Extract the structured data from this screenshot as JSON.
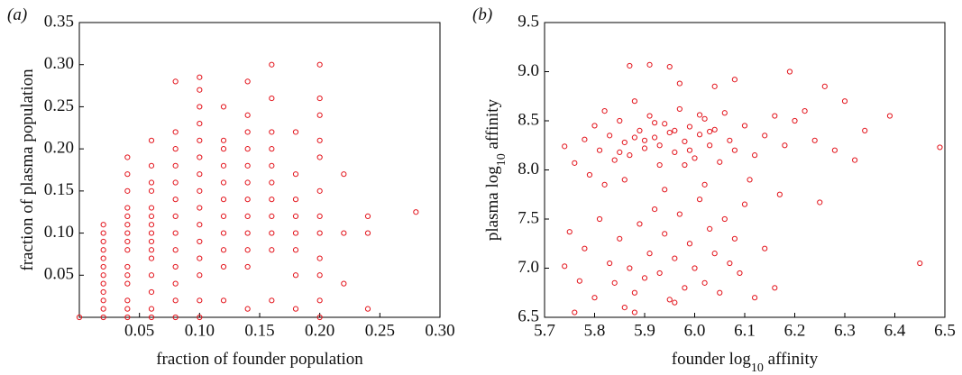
{
  "chart_data": [
    {
      "type": "scatter",
      "panel_label": "(a)",
      "xlabel": "fraction of founder population",
      "ylabel": [
        "fraction of plasma population"
      ],
      "color": "#e3141c",
      "xlim": [
        0,
        0.3
      ],
      "ylim": [
        0,
        0.35
      ],
      "xticks": [
        0.05,
        {
          "value": 0.1,
          "label": "0.10"
        },
        0.15,
        {
          "value": 0.2,
          "label": "0.20"
        },
        0.25,
        {
          "value": 0.3,
          "label": "0.30"
        }
      ],
      "yticks": [
        0.05,
        {
          "value": 0.1,
          "label": "0.10"
        },
        0.15,
        {
          "value": 0.2,
          "label": "0.20"
        },
        0.25,
        {
          "value": 0.3,
          "label": "0.30"
        },
        0.35
      ],
      "x": [
        0,
        0.02,
        0.02,
        0.02,
        0.02,
        0.02,
        0.02,
        0.02,
        0.02,
        0.02,
        0.02,
        0.02,
        0.02,
        0.04,
        0.04,
        0.04,
        0.04,
        0.04,
        0.04,
        0.04,
        0.04,
        0.04,
        0.04,
        0.04,
        0.04,
        0.04,
        0.04,
        0.04,
        0.06,
        0.06,
        0.06,
        0.06,
        0.06,
        0.06,
        0.06,
        0.06,
        0.06,
        0.06,
        0.06,
        0.06,
        0.06,
        0.06,
        0.06,
        0.08,
        0.08,
        0.08,
        0.08,
        0.08,
        0.08,
        0.08,
        0.08,
        0.08,
        0.08,
        0.08,
        0.08,
        0.08,
        0.1,
        0.1,
        0.1,
        0.1,
        0.1,
        0.1,
        0.1,
        0.1,
        0.1,
        0.1,
        0.1,
        0.1,
        0.1,
        0.1,
        0.1,
        0.12,
        0.12,
        0.12,
        0.12,
        0.12,
        0.12,
        0.12,
        0.12,
        0.12,
        0.12,
        0.12,
        0.14,
        0.14,
        0.14,
        0.14,
        0.14,
        0.14,
        0.14,
        0.14,
        0.14,
        0.14,
        0.14,
        0.14,
        0.16,
        0.16,
        0.16,
        0.16,
        0.16,
        0.16,
        0.16,
        0.16,
        0.16,
        0.16,
        0.16,
        0.18,
        0.18,
        0.18,
        0.18,
        0.18,
        0.18,
        0.18,
        0.18,
        0.2,
        0.2,
        0.2,
        0.2,
        0.2,
        0.2,
        0.2,
        0.2,
        0.2,
        0.2,
        0.2,
        0.2,
        0.22,
        0.22,
        0.22,
        0.24,
        0.24,
        0.24,
        0.28
      ],
      "values": [
        0,
        0,
        0.01,
        0.02,
        0.03,
        0.04,
        0.05,
        0.06,
        0.07,
        0.08,
        0.09,
        0.1,
        0.11,
        0,
        0.01,
        0.02,
        0.04,
        0.05,
        0.06,
        0.08,
        0.09,
        0.1,
        0.11,
        0.12,
        0.13,
        0.15,
        0.17,
        0.19,
        0,
        0.01,
        0.03,
        0.05,
        0.07,
        0.08,
        0.09,
        0.1,
        0.11,
        0.12,
        0.13,
        0.15,
        0.16,
        0.18,
        0.21,
        0,
        0.02,
        0.04,
        0.06,
        0.08,
        0.1,
        0.12,
        0.14,
        0.16,
        0.18,
        0.2,
        0.22,
        0.28,
        0,
        0.02,
        0.05,
        0.07,
        0.09,
        0.11,
        0.13,
        0.15,
        0.17,
        0.19,
        0.21,
        0.23,
        0.25,
        0.27,
        0.285,
        0.02,
        0.06,
        0.08,
        0.1,
        0.12,
        0.14,
        0.16,
        0.18,
        0.2,
        0.21,
        0.25,
        0.01,
        0.06,
        0.08,
        0.1,
        0.12,
        0.14,
        0.16,
        0.18,
        0.2,
        0.22,
        0.24,
        0.28,
        0.02,
        0.08,
        0.1,
        0.12,
        0.14,
        0.16,
        0.18,
        0.2,
        0.22,
        0.26,
        0.3,
        0.01,
        0.05,
        0.08,
        0.1,
        0.12,
        0.14,
        0.17,
        0.22,
        0,
        0.02,
        0.05,
        0.07,
        0.1,
        0.12,
        0.15,
        0.19,
        0.21,
        0.24,
        0.26,
        0.3,
        0.04,
        0.1,
        0.17,
        0.01,
        0.1,
        0.12,
        0.125
      ]
    },
    {
      "type": "scatter",
      "panel_label": "(b)",
      "xlabel": [
        "founder log",
        "10",
        " affinity"
      ],
      "ylabel": [
        "plasma log",
        "10",
        " affinity"
      ],
      "color": "#e3141c",
      "xlim": [
        5.7,
        6.5
      ],
      "ylim": [
        6.5,
        9.5
      ],
      "xticks": [
        5.7,
        5.8,
        5.9,
        {
          "value": 6,
          "label": "6.0"
        },
        6.1,
        6.2,
        6.3,
        6.4,
        6.5
      ],
      "yticks": [
        6.5,
        {
          "value": 7,
          "label": "7.0"
        },
        7.5,
        {
          "value": 8,
          "label": "8.0"
        },
        8.5,
        {
          "value": 9,
          "label": "9.0"
        },
        9.5
      ],
      "x": [
        5.74,
        5.76,
        5.78,
        5.79,
        5.8,
        5.81,
        5.82,
        5.83,
        5.84,
        5.85,
        5.86,
        5.87,
        5.88,
        5.89,
        5.9,
        5.91,
        5.92,
        5.93,
        5.94,
        5.95,
        5.96,
        5.97,
        5.98,
        5.99,
        6,
        6.01,
        6.02,
        6.03,
        6.04,
        6.05,
        6.06,
        6.07,
        6.08,
        6.1,
        6.12,
        6.14,
        6.16,
        6.18,
        6.2,
        6.22,
        6.24,
        6.26,
        6.28,
        6.3,
        6.32,
        6.34,
        6.39,
        6.49,
        6.45,
        5.87,
        5.91,
        5.95,
        6.08,
        6.19,
        5.97,
        6.04,
        5.75,
        5.77,
        5.74,
        5.76,
        5.78,
        5.8,
        5.81,
        5.83,
        5.84,
        5.85,
        5.86,
        5.87,
        5.88,
        5.89,
        5.9,
        5.91,
        5.92,
        5.93,
        5.94,
        5.95,
        5.96,
        5.97,
        5.98,
        5.99,
        6,
        6.01,
        6.02,
        6.03,
        6.04,
        6.05,
        6.06,
        6.07,
        6.08,
        6.09,
        6.1,
        6.12,
        6.14,
        6.16,
        6.17,
        5.82,
        5.86,
        5.94,
        6.02,
        6.11,
        6.25,
        5.88,
        5.96,
        5.9,
        5.93,
        5.96,
        5.99,
        5.92,
        5.98,
        6.01,
        5.85,
        5.88,
        6.03
      ],
      "values": [
        8.24,
        8.07,
        8.31,
        7.95,
        8.45,
        8.2,
        8.6,
        8.35,
        8.1,
        8.5,
        8.28,
        8.15,
        8.7,
        8.4,
        8.22,
        8.55,
        8.33,
        8.05,
        8.47,
        8.38,
        8.18,
        8.62,
        8.29,
        8.44,
        8.12,
        8.36,
        8.52,
        8.25,
        8.41,
        8.08,
        8.58,
        8.3,
        8.2,
        8.45,
        8.15,
        8.35,
        8.55,
        8.25,
        8.5,
        8.6,
        8.3,
        8.85,
        8.2,
        8.7,
        8.1,
        8.4,
        8.55,
        8.23,
        7.05,
        9.06,
        9.07,
        9.05,
        8.92,
        9,
        8.88,
        8.85,
        7.37,
        6.87,
        7.02,
        6.55,
        7.2,
        6.7,
        7.5,
        7.05,
        6.85,
        7.3,
        6.6,
        7,
        6.75,
        7.45,
        6.9,
        7.15,
        7.6,
        6.95,
        7.35,
        6.68,
        7.1,
        7.55,
        6.8,
        7.25,
        7,
        7.7,
        6.85,
        7.4,
        7.15,
        6.75,
        7.5,
        7.05,
        7.3,
        6.95,
        7.65,
        6.7,
        7.2,
        6.8,
        7.75,
        7.85,
        7.9,
        7.8,
        7.85,
        7.9,
        7.67,
        6.55,
        6.65,
        8.3,
        8.25,
        8.4,
        8.2,
        8.48,
        8.05,
        8.56,
        8.18,
        8.33,
        8.39
      ]
    }
  ]
}
